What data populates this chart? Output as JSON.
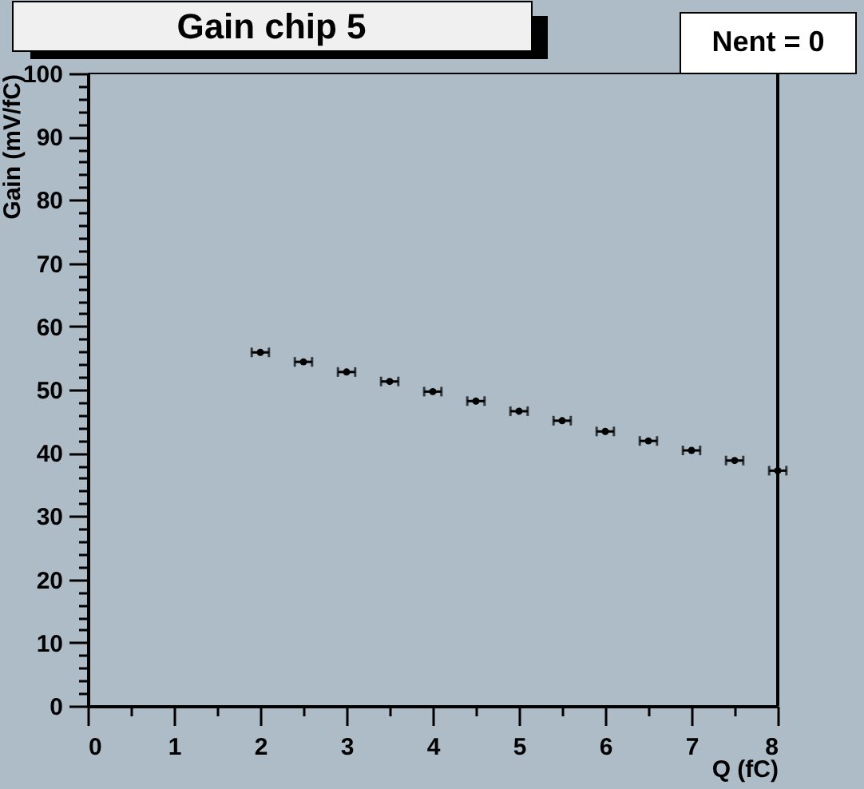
{
  "chart_data": {
    "type": "scatter",
    "title": "Gain chip 5",
    "xlabel": "Q (fC)",
    "ylabel": "Gain (mV/fC)",
    "annotations": [
      "Nent = 0"
    ],
    "x": [
      2,
      2.5,
      3,
      3.5,
      4,
      4.5,
      5,
      5.5,
      6,
      6.5,
      7,
      7.5,
      8
    ],
    "series": [
      {
        "color": "#000000",
        "values": [
          55.9,
          54.4,
          52.8,
          51.3,
          49.7,
          48.2,
          46.6,
          45.1,
          43.4,
          41.9,
          40.4,
          38.8,
          37.2
        ],
        "xerrors": [
          0.1,
          0.1,
          0.1,
          0.1,
          0.1,
          0.1,
          0.1,
          0.1,
          0.1,
          0.1,
          0.1,
          0.1,
          0.1
        ]
      }
    ],
    "marker": "circle",
    "xlim": [
      0,
      8
    ],
    "ylim": [
      0,
      100
    ],
    "xticks": [
      0,
      {
        "value": 0.5,
        "label": null
      },
      1,
      {
        "value": 1.5,
        "label": null
      },
      2,
      {
        "value": 2.5,
        "label": null
      },
      3,
      {
        "value": 3.5,
        "label": null
      },
      4,
      {
        "value": 4.5,
        "label": null
      },
      5,
      {
        "value": 5.5,
        "label": null
      },
      6,
      {
        "value": 6.5,
        "label": null
      },
      7,
      {
        "value": 7.5,
        "label": null
      },
      8
    ],
    "yticks": [
      0,
      {
        "value": 2,
        "label": null
      },
      {
        "value": 4,
        "label": null
      },
      {
        "value": 6,
        "label": null
      },
      {
        "value": 8,
        "label": null
      },
      10,
      {
        "value": 12,
        "label": null
      },
      {
        "value": 14,
        "label": null
      },
      {
        "value": 16,
        "label": null
      },
      {
        "value": 18,
        "label": null
      },
      20,
      {
        "value": 22,
        "label": null
      },
      {
        "value": 24,
        "label": null
      },
      {
        "value": 26,
        "label": null
      },
      {
        "value": 28,
        "label": null
      },
      30,
      {
        "value": 32,
        "label": null
      },
      {
        "value": 34,
        "label": null
      },
      {
        "value": 36,
        "label": null
      },
      {
        "value": 38,
        "label": null
      },
      40,
      {
        "value": 42,
        "label": null
      },
      {
        "value": 44,
        "label": null
      },
      {
        "value": 46,
        "label": null
      },
      {
        "value": 48,
        "label": null
      },
      50,
      {
        "value": 52,
        "label": null
      },
      {
        "value": 54,
        "label": null
      },
      {
        "value": 56,
        "label": null
      },
      {
        "value": 58,
        "label": null
      },
      60,
      {
        "value": 62,
        "label": null
      },
      {
        "value": 64,
        "label": null
      },
      {
        "value": 66,
        "label": null
      },
      {
        "value": 68,
        "label": null
      },
      70,
      {
        "value": 72,
        "label": null
      },
      {
        "value": 74,
        "label": null
      },
      {
        "value": 76,
        "label": null
      },
      {
        "value": 78,
        "label": null
      },
      80,
      {
        "value": 82,
        "label": null
      },
      {
        "value": 84,
        "label": null
      },
      {
        "value": 86,
        "label": null
      },
      {
        "value": 88,
        "label": null
      },
      90,
      {
        "value": 92,
        "label": null
      },
      {
        "value": 94,
        "label": null
      },
      {
        "value": 96,
        "label": null
      },
      {
        "value": 98,
        "label": null
      },
      100
    ]
  }
}
